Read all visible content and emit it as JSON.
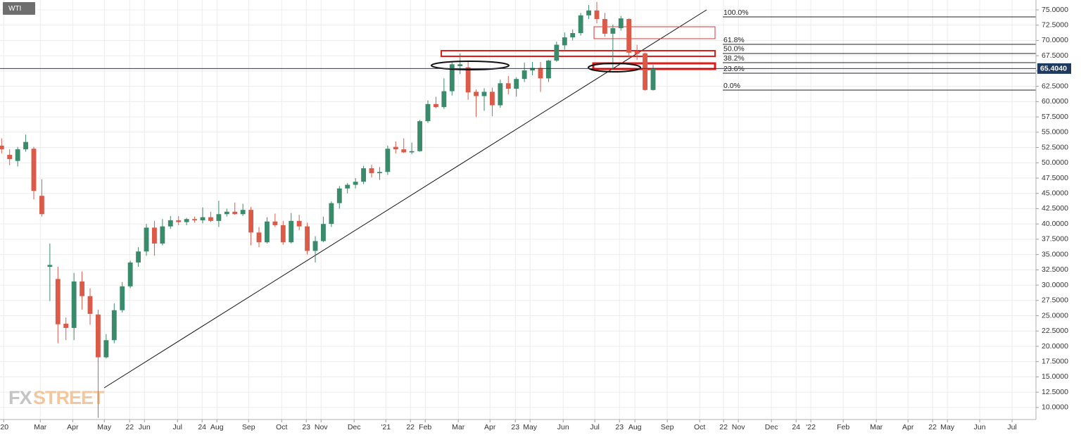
{
  "chart_data": {
    "type": "candlestick",
    "title": "WTI",
    "watermark": [
      "FX",
      "STREET"
    ],
    "up_color": "#3a8a6c",
    "down_color": "#dc5a48",
    "grid": true,
    "xlim": [
      -0.2,
      128.6
    ],
    "ylim": [
      8.03,
      76.61
    ],
    "xticks": [
      {
        "value": 0.26,
        "label": "'20"
      },
      {
        "value": 4.81,
        "label": "Mar"
      },
      {
        "value": 8.84,
        "label": "Apr"
      },
      {
        "value": 12.77,
        "label": "May"
      },
      {
        "value": 15.92,
        "label": "22"
      },
      {
        "value": 17.76,
        "label": "Jun"
      },
      {
        "value": 21.87,
        "label": "Jul"
      },
      {
        "value": 24.93,
        "label": "24"
      },
      {
        "value": 26.77,
        "label": "Aug"
      },
      {
        "value": 30.71,
        "label": "Sep"
      },
      {
        "value": 34.82,
        "label": "Oct"
      },
      {
        "value": 37.88,
        "label": "23"
      },
      {
        "value": 39.72,
        "label": "Nov"
      },
      {
        "value": 43.83,
        "label": "Dec"
      },
      {
        "value": 47.77,
        "label": "'21"
      },
      {
        "value": 50.83,
        "label": "22"
      },
      {
        "value": 52.67,
        "label": "Feb"
      },
      {
        "value": 56.78,
        "label": "Mar"
      },
      {
        "value": 60.72,
        "label": "Apr"
      },
      {
        "value": 63.87,
        "label": "23"
      },
      {
        "value": 65.7,
        "label": "May"
      },
      {
        "value": 69.82,
        "label": "Jun"
      },
      {
        "value": 73.75,
        "label": "Jul"
      },
      {
        "value": 76.82,
        "label": "23"
      },
      {
        "value": 78.74,
        "label": "Aug"
      },
      {
        "value": 82.76,
        "label": "Sep"
      },
      {
        "value": 86.79,
        "label": "Oct"
      },
      {
        "value": 89.76,
        "label": "22"
      },
      {
        "value": 91.6,
        "label": "Nov"
      },
      {
        "value": 95.71,
        "label": "Dec"
      },
      {
        "value": 98.78,
        "label": "24"
      },
      {
        "value": 100.61,
        "label": "'22"
      },
      {
        "value": 104.64,
        "label": "Feb"
      },
      {
        "value": 108.75,
        "label": "Mar"
      },
      {
        "value": 112.69,
        "label": "Apr"
      },
      {
        "value": 115.75,
        "label": "22"
      },
      {
        "value": 117.59,
        "label": "May"
      },
      {
        "value": 121.61,
        "label": "Jun"
      },
      {
        "value": 125.63,
        "label": "Jul"
      }
    ],
    "yticks": [
      {
        "value": 10,
        "label": "10.0000"
      },
      {
        "value": 12.5,
        "label": "12.5000"
      },
      {
        "value": 15,
        "label": "15.0000"
      },
      {
        "value": 17.5,
        "label": "17.5000"
      },
      {
        "value": 20,
        "label": "20.0000"
      },
      {
        "value": 22.5,
        "label": "22.5000"
      },
      {
        "value": 25,
        "label": "25.0000"
      },
      {
        "value": 27.5,
        "label": "27.5000"
      },
      {
        "value": 30,
        "label": "30.0000"
      },
      {
        "value": 32.5,
        "label": "32.5000"
      },
      {
        "value": 35,
        "label": "35.0000"
      },
      {
        "value": 37.5,
        "label": "37.5000"
      },
      {
        "value": 40,
        "label": "40.0000"
      },
      {
        "value": 42.5,
        "label": "42.5000"
      },
      {
        "value": 45,
        "label": "45.0000"
      },
      {
        "value": 47.5,
        "label": "47.5000"
      },
      {
        "value": 50,
        "label": "50.0000"
      },
      {
        "value": 52.5,
        "label": "52.5000"
      },
      {
        "value": 55,
        "label": "55.0000"
      },
      {
        "value": 57.5,
        "label": "57.5000"
      },
      {
        "value": 60,
        "label": "60.0000"
      },
      {
        "value": 62.5,
        "label": "62.5000"
      },
      {
        "value": 65,
        "label": "65.0000"
      },
      {
        "value": 67.5,
        "label": "67.5000"
      },
      {
        "value": 70,
        "label": "70.0000"
      },
      {
        "value": 72.5,
        "label": "72.5000"
      },
      {
        "value": 75,
        "label": "75.0000"
      }
    ],
    "current_price": {
      "value": 65.404,
      "label": "65.4040",
      "color": "#1f3a5f"
    },
    "fib_levels": [
      {
        "name": "100.0%",
        "value": 73.85
      },
      {
        "name": "61.8%",
        "value": 69.36
      },
      {
        "name": "50.0%",
        "value": 67.87
      },
      {
        "name": "38.2%",
        "value": 66.37
      },
      {
        "name": "23.6%",
        "value": 64.64
      },
      {
        "name": "0.0%",
        "value": 61.88
      }
    ],
    "candles": {
      "x": [
        0,
        1,
        2,
        3,
        4,
        5,
        6,
        7,
        8,
        9,
        10,
        11,
        12,
        13,
        14,
        15,
        16,
        17,
        18,
        19,
        20,
        21,
        22,
        23,
        24,
        25,
        26,
        27,
        28,
        29,
        30,
        31,
        32,
        33,
        34,
        35,
        36,
        37,
        38,
        39,
        40,
        41,
        42,
        43,
        44,
        45,
        46,
        47,
        48,
        49,
        50,
        51,
        52,
        53,
        54,
        55,
        56,
        57,
        58,
        59,
        60,
        61,
        62,
        63,
        64,
        65,
        66,
        67,
        68,
        69,
        70,
        71,
        72,
        73,
        74,
        75,
        76,
        77,
        78,
        79,
        80,
        81
      ],
      "open": [
        52.8,
        51.3,
        50.3,
        52.2,
        52.3,
        44.6,
        33.0,
        31.0,
        23.7,
        23.0,
        30.6,
        28.2,
        25.2,
        18.2,
        21.0,
        25.9,
        29.8,
        33.7,
        35.5,
        39.4,
        36.8,
        39.6,
        40.6,
        40.3,
        40.8,
        40.6,
        41.1,
        40.5,
        41.6,
        42.0,
        41.6,
        42.3,
        38.6,
        37.0,
        40.4,
        39.8,
        37.0,
        40.5,
        39.6,
        35.6,
        37.2,
        40.0,
        43.4,
        45.8,
        46.4,
        46.9,
        49.1,
        48.3,
        48.5,
        52.6,
        52.2,
        51.7,
        51.9,
        56.8,
        59.6,
        59.1,
        61.7,
        65.8,
        65.6,
        61.6,
        60.9,
        61.6,
        59.4,
        63.0,
        62.1,
        63.7,
        65.1,
        65.5,
        63.8,
        66.7,
        69.2,
        70.5,
        71.2,
        74.1,
        74.9,
        73.5,
        71.1,
        72.0,
        73.5,
        68.2,
        67.9,
        61.9
      ],
      "high": [
        54.0,
        52.2,
        52.6,
        54.6,
        52.6,
        47.3,
        36.8,
        33.0,
        24.7,
        32.0,
        32.2,
        29.5,
        26.0,
        22.0,
        27.0,
        30.5,
        34.0,
        36.2,
        40.0,
        40.5,
        40.8,
        41.3,
        41.3,
        41.0,
        41.2,
        42.7,
        42.0,
        43.8,
        42.5,
        43.5,
        43.3,
        42.8,
        39.5,
        41.1,
        41.7,
        40.5,
        41.8,
        41.5,
        40.2,
        38.0,
        41.2,
        43.7,
        46.2,
        46.7,
        47.5,
        49.5,
        49.7,
        49.3,
        52.8,
        53.5,
        54.0,
        53.3,
        57.0,
        60.2,
        60.8,
        63.8,
        66.4,
        67.9,
        66.5,
        62.0,
        62.2,
        62.3,
        63.6,
        64.2,
        64.0,
        66.4,
        66.5,
        66.5,
        66.8,
        69.8,
        71.3,
        71.8,
        74.5,
        75.8,
        76.3,
        74.5,
        72.6,
        74.0,
        73.6,
        69.3,
        68.0,
        66.0
      ],
      "low": [
        51.5,
        49.6,
        49.4,
        51.8,
        44.0,
        41.2,
        27.4,
        20.5,
        21.0,
        21.0,
        26.0,
        23.5,
        8.3,
        18.0,
        20.5,
        25.5,
        29.5,
        33.0,
        34.8,
        34.8,
        36.5,
        39.2,
        39.8,
        39.8,
        40.2,
        40.1,
        40.3,
        39.5,
        41.2,
        41.5,
        41.3,
        36.5,
        36.2,
        36.8,
        39.5,
        36.6,
        36.8,
        39.0,
        35.0,
        33.7,
        37.0,
        39.5,
        42.5,
        45.0,
        45.8,
        46.5,
        47.6,
        47.2,
        48.0,
        51.5,
        51.6,
        51.4,
        51.8,
        56.5,
        58.9,
        58.8,
        61.0,
        64.5,
        60.3,
        57.5,
        58.5,
        57.6,
        59.0,
        61.2,
        60.8,
        63.2,
        64.3,
        61.6,
        63.2,
        66.5,
        68.5,
        70.0,
        70.8,
        73.5,
        72.8,
        70.6,
        65.2,
        71.6,
        67.2,
        66.8,
        61.8,
        61.8
      ],
      "close": [
        52.2,
        50.6,
        52.2,
        53.4,
        45.4,
        41.6,
        33.3,
        23.6,
        23.0,
        30.6,
        28.2,
        25.3,
        18.2,
        21.0,
        25.9,
        29.8,
        33.7,
        35.5,
        39.4,
        36.8,
        39.6,
        40.6,
        40.3,
        40.8,
        40.6,
        41.1,
        40.5,
        41.6,
        42.0,
        41.6,
        42.3,
        38.6,
        37.0,
        40.4,
        39.8,
        37.0,
        40.5,
        39.6,
        35.6,
        37.2,
        40.0,
        43.4,
        45.8,
        46.4,
        46.9,
        49.1,
        48.3,
        48.5,
        52.3,
        52.2,
        51.7,
        51.9,
        56.8,
        59.6,
        59.1,
        61.7,
        66.1,
        66.1,
        61.5,
        60.9,
        61.6,
        59.4,
        63.0,
        62.1,
        63.7,
        65.1,
        65.5,
        63.8,
        66.7,
        69.3,
        70.5,
        71.2,
        74.1,
        74.9,
        73.5,
        71.1,
        72.0,
        73.6,
        68.0,
        67.8,
        61.9,
        65.4
      ]
    }
  }
}
